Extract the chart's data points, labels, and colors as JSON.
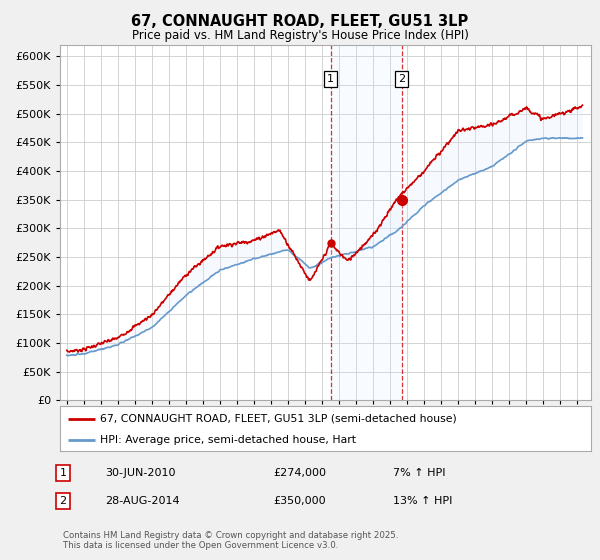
{
  "title": "67, CONNAUGHT ROAD, FLEET, GU51 3LP",
  "subtitle": "Price paid vs. HM Land Registry's House Price Index (HPI)",
  "ytick_values": [
    0,
    50000,
    100000,
    150000,
    200000,
    250000,
    300000,
    350000,
    400000,
    450000,
    500000,
    550000,
    600000
  ],
  "ylim": [
    0,
    620000
  ],
  "xlim_start": 1994.6,
  "xlim_end": 2025.8,
  "purchase1_x": 2010.5,
  "purchase1_y": 274000,
  "purchase2_x": 2014.67,
  "purchase2_y": 350000,
  "legend_line1": "67, CONNAUGHT ROAD, FLEET, GU51 3LP (semi-detached house)",
  "legend_line2": "HPI: Average price, semi-detached house, Hart",
  "ann1_date": "30-JUN-2010",
  "ann1_price": "£274,000",
  "ann1_hpi": "7% ↑ HPI",
  "ann2_date": "28-AUG-2014",
  "ann2_price": "£350,000",
  "ann2_hpi": "13% ↑ HPI",
  "footer": "Contains HM Land Registry data © Crown copyright and database right 2025.\nThis data is licensed under the Open Government Licence v3.0.",
  "line_color_red": "#cc0000",
  "line_color_blue": "#6699cc",
  "shade_color": "#ddeeff",
  "background_color": "#f0f0f0",
  "plot_bg_color": "#ffffff",
  "grid_color": "#cccccc"
}
